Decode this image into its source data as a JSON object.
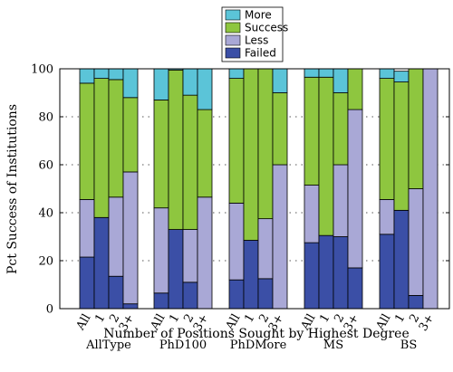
{
  "chart_data": {
    "type": "bar",
    "stacked": true,
    "xlabel": "Number of Positions Sought by Highest Degree",
    "ylabel": "Pct Success of Institutions",
    "ylim": [
      0,
      100
    ],
    "yticks": [
      0,
      20,
      40,
      60,
      80,
      100
    ],
    "grid": "dotted horizontal",
    "legend_position": "top-center",
    "groups": [
      "AllType",
      "PhD100",
      "PhDMore",
      "MS",
      "BS"
    ],
    "subcategories": [
      "All",
      "1",
      "2",
      "3+"
    ],
    "series": [
      {
        "name": "Failed",
        "color": "#3b4fa6",
        "values": [
          [
            21.5,
            38,
            13.5,
            2
          ],
          [
            6.5,
            33,
            11,
            0
          ],
          [
            12,
            28.5,
            12.5,
            0
          ],
          [
            27.5,
            30.5,
            30,
            17
          ],
          [
            31,
            41,
            5.5,
            0
          ]
        ]
      },
      {
        "name": "Less",
        "color": "#a9a8d6",
        "values": [
          [
            24,
            0,
            33,
            55
          ],
          [
            35.5,
            0,
            22,
            46.5
          ],
          [
            32,
            0,
            25,
            60
          ],
          [
            24,
            0,
            30,
            66
          ],
          [
            14.5,
            0,
            44.5,
            100
          ]
        ]
      },
      {
        "name": "Success",
        "color": "#8ec63f",
        "values": [
          [
            48.5,
            58,
            49,
            31
          ],
          [
            45,
            66.5,
            56,
            36.5
          ],
          [
            52,
            71.5,
            62.5,
            30
          ],
          [
            45,
            66,
            30,
            17
          ],
          [
            50.5,
            53.5,
            50,
            0
          ]
        ]
      },
      {
        "name": "More",
        "color": "#5bc4d8",
        "values": [
          [
            6,
            4,
            4.5,
            12
          ],
          [
            13,
            0.5,
            11,
            17
          ],
          [
            4,
            0,
            0,
            10
          ],
          [
            3.5,
            3.5,
            10,
            0
          ],
          [
            4,
            4.5,
            0,
            0
          ]
        ]
      }
    ]
  }
}
